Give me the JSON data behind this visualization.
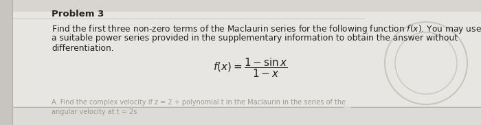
{
  "title": "Problem 3",
  "line1": "Find the first three non-zero terms of the Maclaurin series for the following function $f(x)$. You may use",
  "line2": "a suitable power series provided in the supplementary information to obtain the answer without",
  "line3": "differentiation.",
  "formula": "$f(x) = \\dfrac{1 - \\sin x}{1 - x}$",
  "bg_color": "#d8d5d0",
  "paper_color": "#e8e6e2",
  "text_color": "#222222",
  "faded_text_color": "#aaaaaa",
  "title_fontsize": 9.5,
  "body_fontsize": 8.8,
  "formula_fontsize": 11,
  "faded_line1": "A. Find the complex velocity if z = 2 + polynomial t in the Maclaurin in the series of the",
  "faded_line2": "angular velocity at t = 2s"
}
